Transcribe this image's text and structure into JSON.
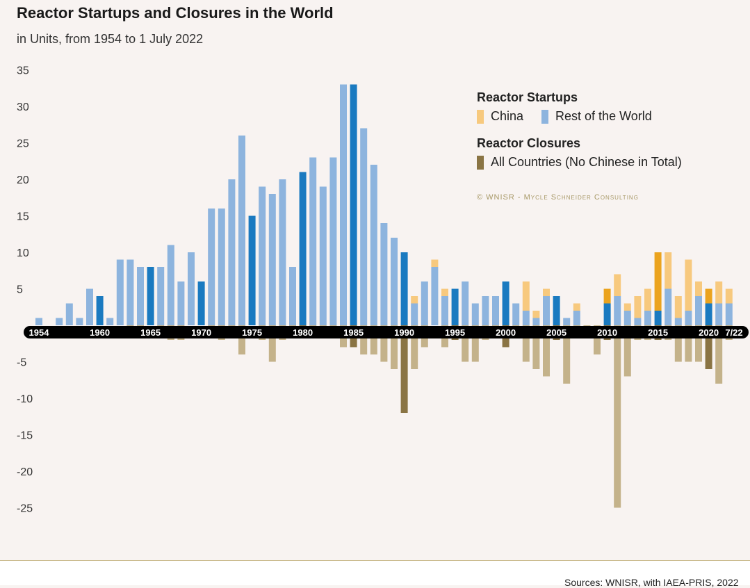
{
  "title": "Reactor Startups and Closures in the World",
  "subtitle": "in Units, from 1954 to 1 July 2022",
  "legend": {
    "startups_heading": "Reactor Startups",
    "china": "China",
    "rest_of_world": "Rest of the World",
    "closures_heading": "Reactor Closures",
    "all_countries": "All Countries (No Chinese in Total)"
  },
  "copyright": "© WNISR - Mycle Schneider Consulting",
  "sources": "Sources: WNISR, with IAEA-PRIS, 2022",
  "colors": {
    "rest_light": "#8db4de",
    "rest_dark": "#1a7ac0",
    "china_light": "#f7c97e",
    "china_dark": "#eba31e",
    "closure_light": "#c4b28a",
    "closure_dark": "#8a7444",
    "axis_band": "#000000"
  },
  "chart_data": {
    "type": "bar",
    "title": "Reactor Startups and Closures in the World",
    "subtitle": "in Units, from 1954 to 1 July 2022",
    "ylim": [
      -25,
      35
    ],
    "yticks": [
      35,
      30,
      25,
      20,
      15,
      10,
      5,
      -5,
      -10,
      -15,
      -20,
      -25
    ],
    "xtick_labels": [
      "1954",
      "1960",
      "1965",
      "1970",
      "1975",
      "1980",
      "1985",
      "1990",
      "1995",
      "2000",
      "2005",
      "2010",
      "2015",
      "2020",
      "7/22"
    ],
    "highlight_years": [
      1960,
      1965,
      1970,
      1975,
      1980,
      1985,
      1990,
      1995,
      2000,
      2005,
      2010,
      2015,
      2020
    ],
    "years": [
      1954,
      1955,
      1956,
      1957,
      1958,
      1959,
      1960,
      1961,
      1962,
      1963,
      1964,
      1965,
      1966,
      1967,
      1968,
      1969,
      1970,
      1971,
      1972,
      1973,
      1974,
      1975,
      1976,
      1977,
      1978,
      1979,
      1980,
      1981,
      1982,
      1983,
      1984,
      1985,
      1986,
      1987,
      1988,
      1989,
      1990,
      1991,
      1992,
      1993,
      1994,
      1995,
      1996,
      1997,
      1998,
      1999,
      2000,
      2001,
      2002,
      2003,
      2004,
      2005,
      2006,
      2007,
      2008,
      2009,
      2010,
      2011,
      2012,
      2013,
      2014,
      2015,
      2016,
      2017,
      2018,
      2019,
      2020,
      2021,
      2022
    ],
    "series": [
      {
        "name": "Rest of the World",
        "values": [
          1,
          0,
          1,
          3,
          1,
          5,
          4,
          1,
          9,
          9,
          8,
          8,
          8,
          11,
          6,
          10,
          6,
          16,
          16,
          20,
          26,
          15,
          19,
          18,
          20,
          8,
          21,
          23,
          19,
          23,
          33,
          33,
          27,
          22,
          14,
          12,
          10,
          3,
          6,
          8,
          4,
          5,
          6,
          3,
          4,
          4,
          6,
          3,
          2,
          1,
          4,
          4,
          1,
          2,
          0,
          0,
          3,
          4,
          2,
          1,
          2,
          2,
          5,
          1,
          2,
          4,
          3,
          3,
          3
        ]
      },
      {
        "name": "China",
        "values": [
          0,
          0,
          0,
          0,
          0,
          0,
          0,
          0,
          0,
          0,
          0,
          0,
          0,
          0,
          0,
          0,
          0,
          0,
          0,
          0,
          0,
          0,
          0,
          0,
          0,
          0,
          0,
          0,
          0,
          0,
          0,
          0,
          0,
          0,
          0,
          0,
          0,
          1,
          0,
          1,
          1,
          0,
          0,
          0,
          0,
          0,
          0,
          0,
          4,
          1,
          1,
          0,
          0,
          1,
          0,
          0,
          2,
          3,
          1,
          3,
          3,
          8,
          5,
          3,
          7,
          2,
          2,
          3,
          2
        ]
      },
      {
        "name": "All Countries (No Chinese in Total)",
        "values": [
          0,
          0,
          0,
          0,
          0,
          0,
          0,
          0,
          0,
          -1,
          -1,
          0,
          -1,
          -2,
          -2,
          0,
          0,
          -1,
          -2,
          -1,
          -4,
          0,
          -2,
          -5,
          -2,
          -1,
          -1,
          -1,
          -1,
          -1,
          -3,
          -3,
          -4,
          -4,
          -5,
          -6,
          -12,
          -6,
          -3,
          0,
          -3,
          -2,
          -5,
          -5,
          -2,
          -1,
          -3,
          -1,
          -5,
          -6,
          -7,
          -2,
          -8,
          -1,
          -1,
          -4,
          -2,
          -25,
          -7,
          -2,
          -2,
          -2,
          -2,
          -5,
          -5,
          -5,
          -6,
          -8,
          -2
        ]
      }
    ]
  }
}
